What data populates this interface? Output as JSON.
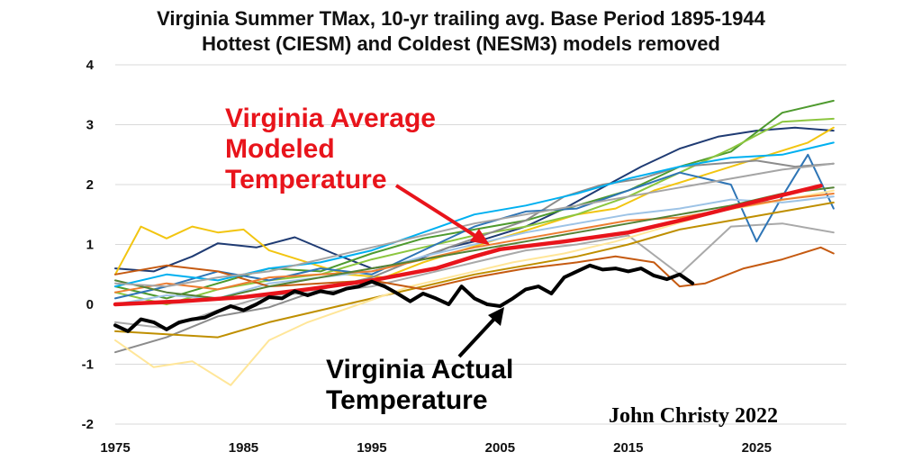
{
  "chart_data": {
    "type": "line",
    "title": "Virginia Summer TMax, 10-yr trailing avg. Base Period 1895-1944",
    "subtitle": "Hottest (CIESM) and Coldest (NESM3) models removed",
    "xlabel": "",
    "ylabel": "",
    "xlim": [
      1975,
      2032
    ],
    "ylim": [
      -2,
      4
    ],
    "x_ticks": [
      "1975",
      "1985",
      "1995",
      "2005",
      "2015",
      "2025"
    ],
    "y_ticks": [
      "4",
      "3",
      "2",
      "1",
      "0",
      "-1",
      "-2"
    ],
    "grid": true,
    "legend": "none",
    "annotations": {
      "modeled": [
        "Virginia Average",
        "Modeled",
        "Temperature"
      ],
      "actual": [
        "Virginia Actual",
        "Temperature"
      ]
    },
    "credit": "John Christy 2022",
    "series": [
      {
        "name": "Virginia Average Modeled Temperature",
        "color": "#e8141b",
        "x": [
          1975,
          1980,
          1985,
          1990,
          1995,
          2000,
          2003,
          2005,
          2010,
          2015,
          2020,
          2025,
          2030
        ],
        "values": [
          0.0,
          0.05,
          0.12,
          0.25,
          0.4,
          0.6,
          0.8,
          0.92,
          1.05,
          1.2,
          1.45,
          1.72,
          1.98
        ]
      },
      {
        "name": "Virginia Actual Temperature",
        "color": "#000000",
        "x": [
          1975,
          1976,
          1977,
          1978,
          1979,
          1980,
          1981,
          1982,
          1983,
          1984,
          1985,
          1986,
          1987,
          1988,
          1989,
          1990,
          1991,
          1992,
          1993,
          1994,
          1995,
          1996,
          1997,
          1998,
          1999,
          2000,
          2001,
          2002,
          2003,
          2004,
          2005,
          2006,
          2007,
          2008,
          2009,
          2010,
          2011,
          2012,
          2013,
          2014,
          2015,
          2016,
          2017,
          2018,
          2019,
          2020
        ],
        "values": [
          -0.35,
          -0.45,
          -0.25,
          -0.3,
          -0.42,
          -0.3,
          -0.25,
          -0.22,
          -0.12,
          -0.03,
          -0.1,
          0.0,
          0.12,
          0.1,
          0.22,
          0.15,
          0.22,
          0.18,
          0.26,
          0.3,
          0.38,
          0.3,
          0.18,
          0.05,
          0.18,
          0.1,
          0.0,
          0.3,
          0.1,
          0.0,
          -0.03,
          0.1,
          0.25,
          0.3,
          0.18,
          0.45,
          0.55,
          0.65,
          0.58,
          0.6,
          0.55,
          0.6,
          0.48,
          0.42,
          0.5,
          0.35
        ]
      },
      {
        "name": "",
        "color": "#1f3b73",
        "x": [
          1975,
          1978,
          1981,
          1983,
          1986,
          1989,
          1992,
          1995,
          1998,
          2001,
          2004,
          2007,
          2010,
          2013,
          2016,
          2019,
          2022,
          2025,
          2028,
          2031
        ],
        "values": [
          0.6,
          0.55,
          0.8,
          1.02,
          0.95,
          1.12,
          0.85,
          0.6,
          0.7,
          0.95,
          1.1,
          1.3,
          1.6,
          1.95,
          2.3,
          2.6,
          2.8,
          2.9,
          2.95,
          2.9
        ]
      },
      {
        "name": "",
        "color": "#f2c511",
        "x": [
          1975,
          1977,
          1979,
          1981,
          1983,
          1985,
          1987,
          1990,
          1993,
          1996,
          1999,
          2002,
          2005,
          2008,
          2011,
          2014,
          2017,
          2020,
          2023,
          2026,
          2029,
          2031
        ],
        "values": [
          0.5,
          1.3,
          1.1,
          1.3,
          1.2,
          1.25,
          0.9,
          0.7,
          0.5,
          0.45,
          0.7,
          0.9,
          1.1,
          1.3,
          1.5,
          1.6,
          1.9,
          2.1,
          2.3,
          2.5,
          2.7,
          2.95
        ]
      },
      {
        "name": "",
        "color": "#4e9a2e",
        "x": [
          1975,
          1979,
          1983,
          1987,
          1991,
          1995,
          1999,
          2003,
          2007,
          2011,
          2015,
          2019,
          2023,
          2027,
          2031
        ],
        "values": [
          0.3,
          0.1,
          0.35,
          0.6,
          0.55,
          0.85,
          1.1,
          1.25,
          1.4,
          1.65,
          1.9,
          2.3,
          2.55,
          3.2,
          3.4
        ]
      },
      {
        "name": "",
        "color": "#8cc63f",
        "x": [
          1975,
          1979,
          1983,
          1987,
          1991,
          1995,
          1999,
          2003,
          2007,
          2011,
          2015,
          2019,
          2023,
          2027,
          2031
        ],
        "values": [
          0.2,
          0.0,
          0.25,
          0.4,
          0.5,
          0.75,
          0.95,
          1.15,
          1.3,
          1.5,
          1.8,
          2.2,
          2.6,
          3.05,
          3.1
        ]
      },
      {
        "name": "",
        "color": "#8c8c8c",
        "x": [
          1975,
          1979,
          1983,
          1987,
          1991,
          1995,
          1999,
          2003,
          2007,
          2010,
          2013,
          2016,
          2019,
          2022,
          2025,
          2028,
          2031
        ],
        "values": [
          -0.8,
          -0.55,
          -0.2,
          -0.05,
          0.25,
          0.45,
          0.8,
          1.1,
          1.4,
          1.8,
          2.0,
          2.1,
          2.3,
          2.35,
          2.4,
          2.3,
          2.35
        ]
      },
      {
        "name": "",
        "color": "#a9a9a9",
        "x": [
          1975,
          1979,
          1983,
          1987,
          1991,
          1995,
          1999,
          2003,
          2007,
          2011,
          2015,
          2019,
          2023,
          2027,
          2031
        ],
        "values": [
          -0.3,
          -0.4,
          -0.1,
          0.15,
          0.2,
          0.3,
          0.5,
          0.7,
          0.9,
          1.0,
          1.15,
          0.5,
          1.3,
          1.35,
          1.2
        ]
      },
      {
        "name": "",
        "color": "#2e75b6",
        "x": [
          1975,
          1979,
          1983,
          1987,
          1991,
          1995,
          1999,
          2003,
          2007,
          2011,
          2015,
          2019,
          2023,
          2025,
          2027,
          2029,
          2031
        ],
        "values": [
          0.1,
          0.3,
          0.55,
          0.4,
          0.6,
          0.5,
          0.9,
          1.3,
          1.55,
          1.6,
          1.9,
          2.2,
          2.0,
          1.05,
          1.8,
          2.5,
          1.6
        ]
      },
      {
        "name": "",
        "color": "#9dc3e6",
        "x": [
          1975,
          1979,
          1983,
          1987,
          1991,
          1995,
          1999,
          2003,
          2007,
          2011,
          2015,
          2019,
          2023,
          2027,
          2031
        ],
        "values": [
          0.0,
          0.15,
          0.1,
          0.35,
          0.45,
          0.55,
          0.8,
          1.0,
          1.2,
          1.35,
          1.5,
          1.6,
          1.75,
          1.7,
          1.8
        ]
      },
      {
        "name": "",
        "color": "#bf8f00",
        "x": [
          1975,
          1979,
          1983,
          1987,
          1991,
          1995,
          1999,
          2003,
          2007,
          2011,
          2015,
          2019,
          2023,
          2027,
          2031
        ],
        "values": [
          -0.45,
          -0.5,
          -0.55,
          -0.3,
          -0.1,
          0.1,
          0.3,
          0.5,
          0.65,
          0.8,
          1.0,
          1.25,
          1.4,
          1.55,
          1.7
        ]
      },
      {
        "name": "",
        "color": "#ffe699",
        "x": [
          1975,
          1978,
          1981,
          1984,
          1987,
          1990,
          1994,
          1998,
          2002,
          2006,
          2010,
          2014,
          2018,
          2022,
          2026,
          2031
        ],
        "values": [
          -0.6,
          -1.05,
          -0.95,
          -1.35,
          -0.6,
          -0.3,
          0.0,
          0.3,
          0.5,
          0.7,
          0.85,
          1.05,
          1.3,
          1.55,
          1.7,
          1.9
        ]
      },
      {
        "name": "",
        "color": "#c55a11",
        "x": [
          1975,
          1979,
          1983,
          1987,
          1991,
          1995,
          1999,
          2003,
          2007,
          2011,
          2014,
          2017,
          2019,
          2021,
          2024,
          2027,
          2030,
          2031
        ],
        "values": [
          0.5,
          0.65,
          0.55,
          0.3,
          0.35,
          0.4,
          0.25,
          0.45,
          0.6,
          0.7,
          0.8,
          0.7,
          0.3,
          0.35,
          0.6,
          0.75,
          0.95,
          0.85
        ]
      },
      {
        "name": "",
        "color": "#ed7d31",
        "x": [
          1975,
          1979,
          1983,
          1987,
          1991,
          1995,
          1999,
          2003,
          2007,
          2011,
          2015,
          2019,
          2023,
          2027,
          2031
        ],
        "values": [
          0.2,
          0.35,
          0.25,
          0.45,
          0.5,
          0.55,
          0.75,
          0.95,
          1.1,
          1.25,
          1.4,
          1.45,
          1.6,
          1.75,
          1.85
        ]
      },
      {
        "name": "",
        "color": "#548235",
        "x": [
          1975,
          1979,
          1983,
          1987,
          1991,
          1995,
          1999,
          2003,
          2007,
          2011,
          2015,
          2019,
          2023,
          2027,
          2031
        ],
        "values": [
          0.4,
          0.2,
          0.1,
          0.3,
          0.45,
          0.6,
          0.75,
          0.9,
          1.05,
          1.2,
          1.35,
          1.5,
          1.65,
          1.85,
          1.95
        ]
      },
      {
        "name": "",
        "color": "#00b0f0",
        "x": [
          1975,
          1979,
          1983,
          1987,
          1991,
          1995,
          1999,
          2003,
          2007,
          2011,
          2015,
          2019,
          2023,
          2027,
          2031
        ],
        "values": [
          0.3,
          0.5,
          0.4,
          0.6,
          0.7,
          0.9,
          1.2,
          1.5,
          1.65,
          1.85,
          2.1,
          2.3,
          2.45,
          2.5,
          2.7
        ]
      },
      {
        "name": "",
        "color": "#a5a5a5",
        "x": [
          1975,
          1979,
          1983,
          1987,
          1991,
          1995,
          1999,
          2003,
          2007,
          2011,
          2015,
          2019,
          2023,
          2027,
          2031
        ],
        "values": [
          0.35,
          0.3,
          0.45,
          0.55,
          0.75,
          0.95,
          1.15,
          1.35,
          1.5,
          1.65,
          1.8,
          1.95,
          2.1,
          2.25,
          2.35
        ]
      }
    ]
  }
}
